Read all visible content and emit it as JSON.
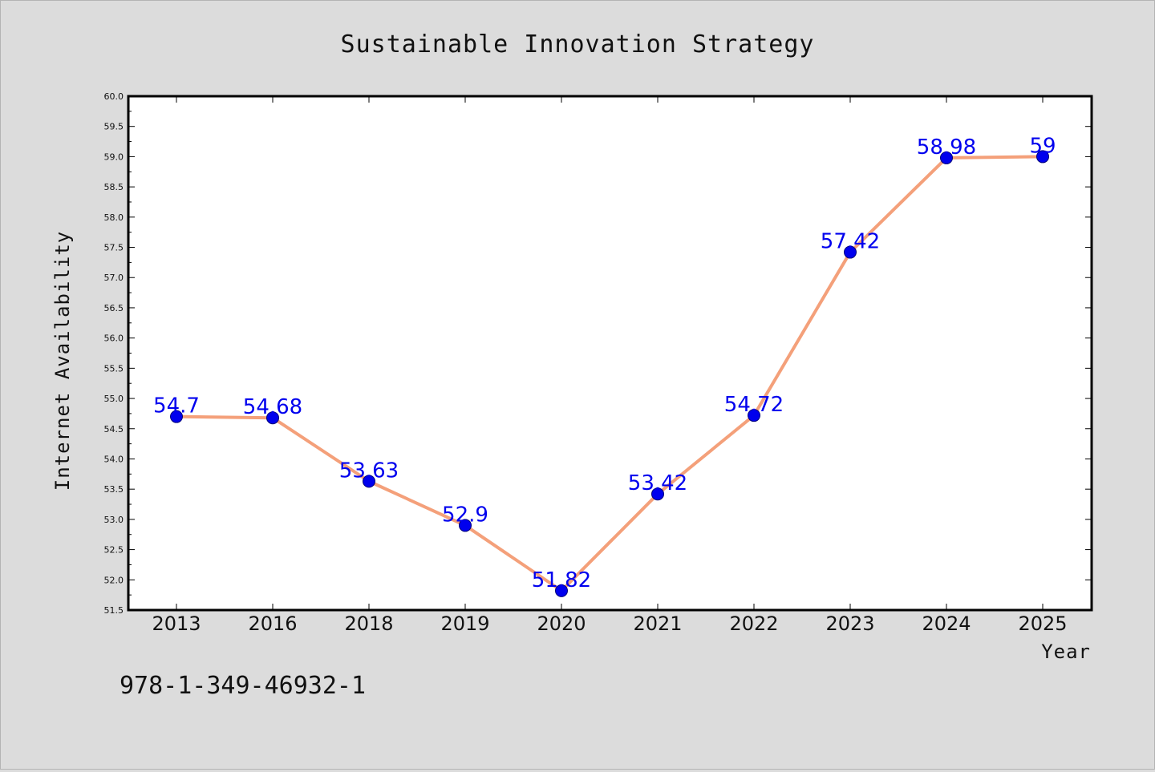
{
  "chart_data": {
    "type": "line",
    "title": "Sustainable Innovation Strategy",
    "xlabel": "Year",
    "ylabel": "Internet Availability",
    "categories": [
      "2013",
      "2016",
      "2018",
      "2019",
      "2020",
      "2021",
      "2022",
      "2023",
      "2024",
      "2025"
    ],
    "values": [
      54.7,
      54.68,
      53.63,
      52.9,
      51.82,
      53.42,
      54.72,
      57.42,
      58.98,
      59
    ],
    "data_labels": [
      "54.7",
      "54.68",
      "53.63",
      "52.9",
      "51.82",
      "53.42",
      "54.72",
      "57.42",
      "58.98",
      "59"
    ],
    "ylim": [
      51.5,
      60.0
    ],
    "yticks": [
      "51.5",
      "52.0",
      "52.5",
      "53.0",
      "53.5",
      "54.0",
      "54.5",
      "55.0",
      "55.5",
      "56.0",
      "56.5",
      "57.0",
      "57.5",
      "58.0",
      "58.5",
      "59.0",
      "59.5",
      "60.0"
    ],
    "grid": false,
    "line_color": "#f4a07a",
    "marker_color": "#0000ee",
    "label_color": "#0000ee",
    "background": "#dcdcdc",
    "plot_background": "#ffffff"
  },
  "footer_text": "978-1-349-46932-1"
}
